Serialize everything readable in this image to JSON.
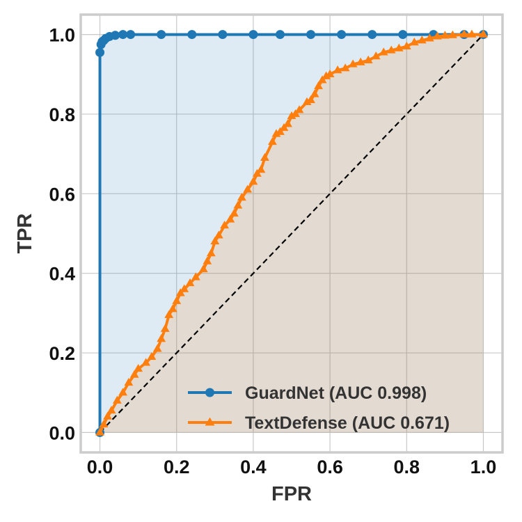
{
  "chart_data": {
    "type": "line",
    "title": "",
    "xlabel": "FPR",
    "ylabel": "TPR",
    "xlim": [
      -0.05,
      1.05
    ],
    "ylim": [
      -0.05,
      1.05
    ],
    "xticks": [
      "0.0",
      "0.2",
      "0.4",
      "0.6",
      "0.8",
      "1.0"
    ],
    "yticks": [
      "0.0",
      "0.2",
      "0.4",
      "0.6",
      "0.8",
      "1.0"
    ],
    "grid": true,
    "legend_position": "bottom-right",
    "diagonal_reference": true,
    "series": [
      {
        "name": "GuardNet (AUC 0.998)",
        "color": "#1f77b4",
        "marker": "circle",
        "fill": true,
        "x": [
          0.0,
          0.0,
          0.003,
          0.006,
          0.01,
          0.015,
          0.025,
          0.04,
          0.06,
          0.08,
          0.16,
          0.24,
          0.32,
          0.4,
          0.47,
          0.55,
          0.63,
          0.71,
          0.79,
          0.87,
          0.95,
          1.0
        ],
        "y": [
          0.0,
          0.955,
          0.975,
          0.982,
          0.985,
          0.99,
          0.995,
          0.998,
          1.0,
          1.0,
          1.0,
          1.0,
          1.0,
          1.0,
          1.0,
          1.0,
          1.0,
          1.0,
          1.0,
          1.0,
          1.0,
          1.0
        ]
      },
      {
        "name": "TextDefense (AUC 0.671)",
        "color": "#ff7f0e",
        "marker": "triangle",
        "fill": true,
        "x": [
          0.0,
          0.01,
          0.02,
          0.03,
          0.045,
          0.06,
          0.075,
          0.09,
          0.1,
          0.12,
          0.135,
          0.15,
          0.16,
          0.17,
          0.18,
          0.19,
          0.2,
          0.21,
          0.22,
          0.235,
          0.25,
          0.27,
          0.28,
          0.29,
          0.3,
          0.31,
          0.325,
          0.34,
          0.35,
          0.36,
          0.37,
          0.385,
          0.4,
          0.41,
          0.42,
          0.43,
          0.45,
          0.46,
          0.47,
          0.48,
          0.49,
          0.5,
          0.51,
          0.52,
          0.54,
          0.55,
          0.56,
          0.57,
          0.58,
          0.59,
          0.6,
          0.62,
          0.64,
          0.66,
          0.68,
          0.7,
          0.72,
          0.74,
          0.76,
          0.78,
          0.8,
          0.82,
          0.84,
          0.86,
          0.88,
          0.9,
          0.92,
          0.95,
          0.97,
          1.0
        ],
        "y": [
          0.0,
          0.02,
          0.04,
          0.055,
          0.08,
          0.1,
          0.125,
          0.145,
          0.16,
          0.175,
          0.19,
          0.21,
          0.235,
          0.26,
          0.295,
          0.31,
          0.33,
          0.35,
          0.36,
          0.375,
          0.39,
          0.41,
          0.43,
          0.45,
          0.48,
          0.495,
          0.52,
          0.535,
          0.55,
          0.57,
          0.59,
          0.61,
          0.63,
          0.65,
          0.66,
          0.69,
          0.73,
          0.75,
          0.755,
          0.765,
          0.775,
          0.795,
          0.8,
          0.81,
          0.83,
          0.835,
          0.85,
          0.87,
          0.885,
          0.895,
          0.9,
          0.91,
          0.915,
          0.925,
          0.93,
          0.935,
          0.945,
          0.955,
          0.96,
          0.965,
          0.97,
          0.98,
          0.985,
          0.99,
          0.995,
          0.997,
          0.998,
          1.0,
          1.0,
          1.0
        ]
      }
    ]
  }
}
